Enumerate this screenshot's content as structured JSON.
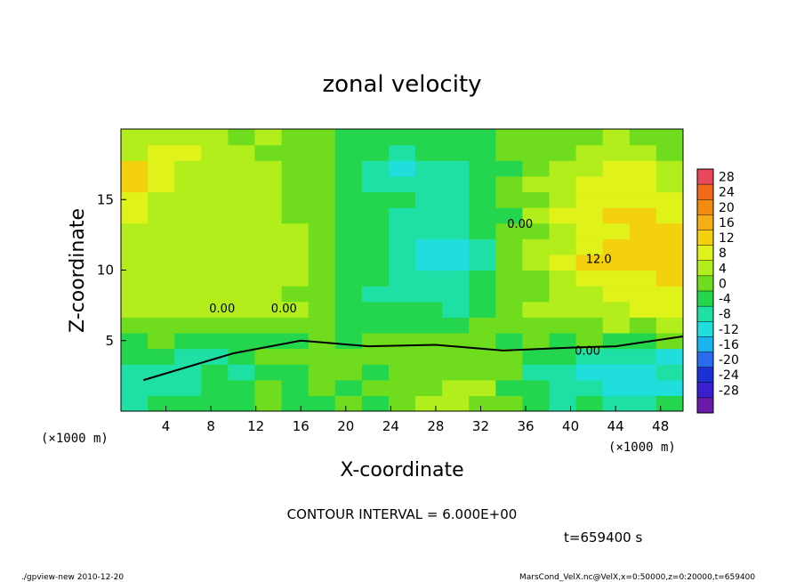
{
  "chart_data": {
    "type": "heatmap",
    "title": "zonal velocity",
    "xlabel": "X-coordinate",
    "ylabel": "Z-coordinate",
    "xlim": [
      0,
      50
    ],
    "ylim": [
      0,
      20
    ],
    "x_ticks": [
      4,
      8,
      12,
      16,
      20,
      24,
      28,
      32,
      36,
      40,
      44,
      48
    ],
    "y_ticks": [
      5,
      10,
      15
    ],
    "x_unit": "(×1000 m)",
    "y_unit": "(×1000 m)",
    "colorbar": {
      "levels": [
        28,
        24,
        20,
        16,
        12,
        8,
        4,
        0,
        -4,
        -8,
        -12,
        -16,
        -20,
        -24,
        -28
      ],
      "colors": [
        "#e8485a",
        "#f06a1a",
        "#f48b10",
        "#f6ae12",
        "#f4d10e",
        "#dff21a",
        "#b2ee1c",
        "#6fdd1e",
        "#24d64e",
        "#1ee0a4",
        "#1fdedc",
        "#19b4f0",
        "#2a6cf0",
        "#1c30d6",
        "#3a1ed0",
        "#6a1aa8"
      ]
    },
    "contour_labels": [
      "0.00",
      "0.00",
      "0.00",
      "0.00",
      "12.0"
    ],
    "contour_interval": "CONTOUR INTERVAL = 6.000E+00",
    "time_label": "t=659400 s",
    "field": [
      [
        -5,
        -4,
        -2,
        -4,
        -2,
        0,
        -1,
        -3,
        0,
        -1,
        3,
        4,
        6,
        2,
        0,
        -3,
        -5,
        -3,
        -5,
        -7,
        -2
      ],
      [
        -6,
        -7,
        -5,
        -2,
        -3,
        0,
        -2,
        0,
        -1,
        0,
        3,
        2,
        4,
        4,
        -1,
        -3,
        -7,
        -8,
        -11,
        -10,
        -10
      ],
      [
        -6,
        -5,
        -5,
        -3,
        -5,
        -1,
        -1,
        3,
        0,
        -1,
        2,
        1,
        1,
        3,
        1,
        -6,
        -6,
        -10,
        -11,
        -10,
        -7
      ],
      [
        -4,
        -4,
        -5,
        -6,
        -3,
        0,
        0,
        1,
        0,
        1,
        2,
        0,
        2,
        3,
        0,
        -3,
        -3,
        -5,
        -7,
        -7,
        -10
      ],
      [
        -1,
        0,
        -1,
        -1,
        -1,
        -3,
        -1,
        0,
        -1,
        1,
        0,
        0,
        1,
        2,
        -1,
        1,
        -2,
        0,
        -2,
        -1,
        0
      ],
      [
        2,
        2,
        3,
        2,
        2,
        1,
        1,
        0,
        -3,
        -3,
        -4,
        -3,
        -4,
        0,
        0,
        3,
        3,
        2,
        5,
        2,
        5
      ],
      [
        4,
        4,
        5,
        4,
        5,
        4,
        4,
        1,
        -2,
        -4,
        -3,
        -4,
        -5,
        -3,
        1,
        5,
        6,
        7,
        7,
        8,
        11
      ],
      [
        6,
        4,
        5,
        6,
        7,
        6,
        3,
        3,
        -1,
        -5,
        -5,
        -6,
        -5,
        -4,
        1,
        3,
        6,
        7,
        10,
        10,
        11
      ],
      [
        5,
        6,
        6,
        5,
        5,
        6,
        5,
        2,
        -1,
        -3,
        -6,
        -6,
        -7,
        -4,
        0,
        3,
        7,
        9,
        11,
        11,
        12
      ],
      [
        6,
        4,
        7,
        7,
        4,
        5,
        4,
        1,
        -2,
        -4,
        -5,
        -10,
        -11,
        -7,
        0,
        7,
        8,
        12,
        13,
        15,
        12
      ],
      [
        7,
        7,
        7,
        5,
        5,
        4,
        6,
        2,
        -1,
        -4,
        -5,
        -10,
        -9,
        -7,
        1,
        5,
        6,
        11,
        15,
        13,
        12
      ],
      [
        7,
        5,
        6,
        7,
        4,
        4,
        4,
        2,
        -1,
        -3,
        -8,
        -7,
        -8,
        -4,
        0,
        3,
        7,
        9,
        11,
        12,
        12
      ],
      [
        9,
        7,
        5,
        5,
        4,
        6,
        2,
        0,
        -2,
        -3,
        -6,
        -8,
        -7,
        -4,
        -1,
        5,
        8,
        9,
        13,
        13,
        11
      ],
      [
        10,
        7,
        6,
        5,
        5,
        7,
        3,
        0,
        -2,
        -3,
        -4,
        -7,
        -6,
        -4,
        1,
        3,
        5,
        10,
        9,
        10,
        9
      ],
      [
        13,
        11,
        7,
        5,
        4,
        4,
        2,
        1,
        -1,
        -6,
        -7,
        -8,
        -6,
        -4,
        0,
        5,
        7,
        8,
        9,
        8,
        7
      ],
      [
        12,
        10,
        7,
        4,
        4,
        6,
        3,
        2,
        -2,
        -5,
        -9,
        -7,
        -6,
        -2,
        -1,
        3,
        7,
        7,
        8,
        8,
        7
      ],
      [
        7,
        8,
        8,
        6,
        4,
        2,
        2,
        1,
        -1,
        -3,
        -6,
        -4,
        -2,
        -2,
        0,
        3,
        3,
        6,
        6,
        4,
        3
      ],
      [
        5,
        4,
        4,
        4,
        2,
        4,
        2,
        1,
        -2,
        -3,
        -3,
        -2,
        -1,
        -1,
        0,
        2,
        2,
        1,
        4,
        1,
        2
      ]
    ],
    "zero_line": [
      [
        2,
        2.2
      ],
      [
        10,
        4.1
      ],
      [
        16,
        5.0
      ],
      [
        22,
        4.6
      ],
      [
        28,
        4.7
      ],
      [
        34,
        4.3
      ],
      [
        40,
        4.5
      ],
      [
        44,
        4.6
      ],
      [
        50,
        5.3
      ]
    ]
  },
  "footer": {
    "left": "./gpview-new   2010-12-20",
    "right": "MarsCond_VelX.nc@VelX,x=0:50000,z=0:20000,t=659400"
  }
}
